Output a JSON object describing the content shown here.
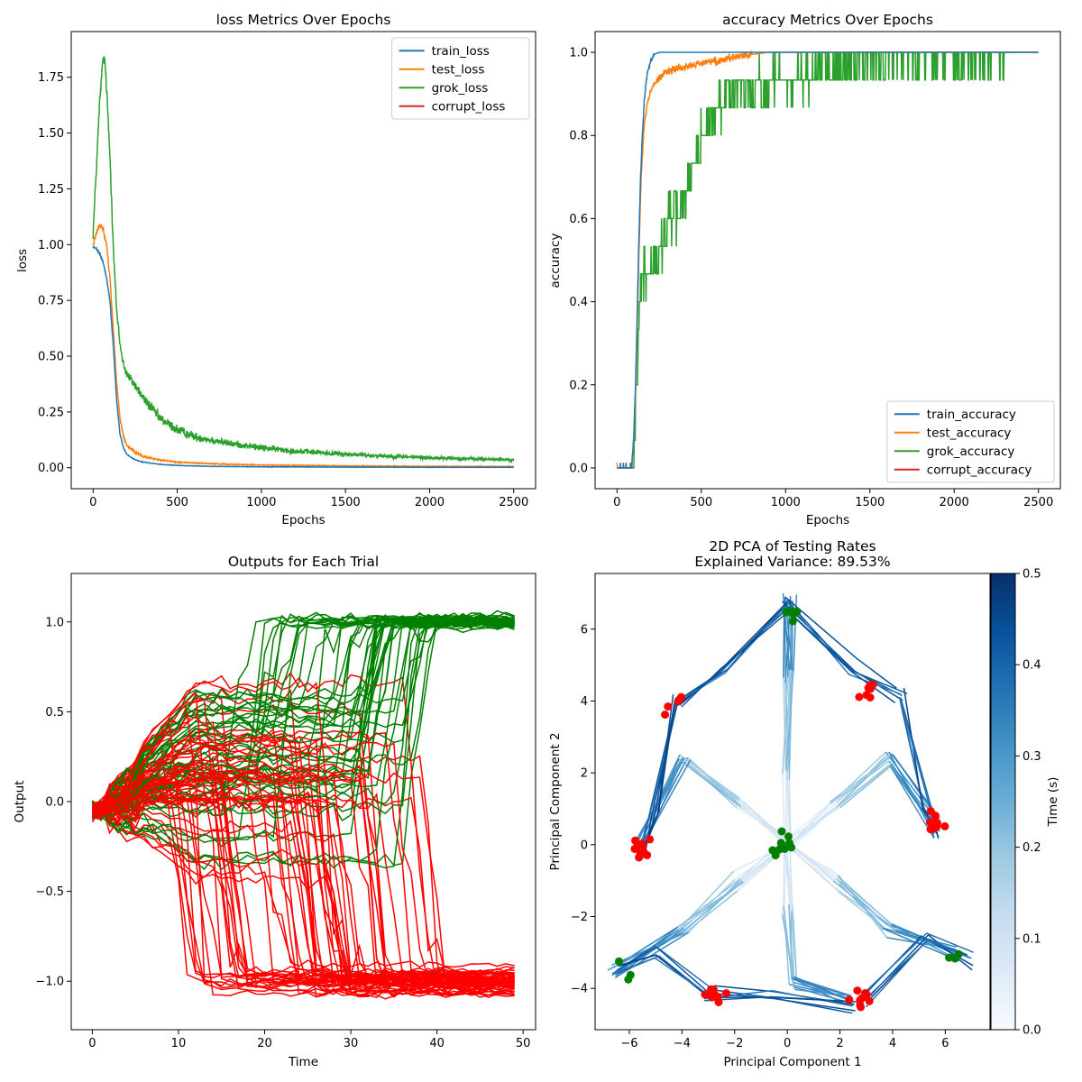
{
  "chart_data": [
    {
      "type": "line",
      "title": "loss Metrics Over Epochs",
      "xlabel": "Epochs",
      "ylabel": "loss",
      "xlim": [
        -130,
        2630
      ],
      "ylim": [
        -0.094,
        1.955
      ],
      "xticks": [
        0,
        500,
        1000,
        1500,
        2000,
        2500
      ],
      "yticks": [
        0.0,
        0.25,
        0.5,
        0.75,
        1.0,
        1.25,
        1.5,
        1.75
      ],
      "ytick_labels": [
        "0.00",
        "0.25",
        "0.50",
        "0.75",
        "1.00",
        "1.25",
        "1.50",
        "1.75"
      ],
      "legend_position": "upper right",
      "series": [
        {
          "name": "train_loss",
          "color": "#1f77b4",
          "x": [
            0,
            20,
            40,
            60,
            80,
            100,
            120,
            140,
            160,
            180,
            200,
            250,
            300,
            400,
            500,
            700,
            1000,
            1500,
            2000,
            2500
          ],
          "y": [
            0.99,
            0.98,
            0.96,
            0.92,
            0.85,
            0.75,
            0.55,
            0.3,
            0.15,
            0.09,
            0.06,
            0.035,
            0.025,
            0.015,
            0.01,
            0.006,
            0.004,
            0.003,
            0.002,
            0.002
          ],
          "noise": 0.006
        },
        {
          "name": "test_loss",
          "color": "#ff7f0e",
          "x": [
            0,
            20,
            40,
            60,
            80,
            100,
            120,
            140,
            160,
            180,
            200,
            250,
            300,
            400,
            500,
            700,
            1000,
            1500,
            2000,
            2500
          ],
          "y": [
            1.0,
            1.05,
            1.09,
            1.07,
            1.0,
            0.85,
            0.62,
            0.38,
            0.22,
            0.14,
            0.1,
            0.07,
            0.05,
            0.035,
            0.025,
            0.018,
            0.012,
            0.008,
            0.006,
            0.005
          ],
          "noise": 0.012
        },
        {
          "name": "grok_loss",
          "color": "#2ca02c",
          "x": [
            0,
            20,
            40,
            60,
            70,
            80,
            100,
            120,
            140,
            160,
            180,
            200,
            250,
            300,
            400,
            500,
            600,
            800,
            1000,
            1200,
            1500,
            2000,
            2500
          ],
          "y": [
            1.05,
            1.35,
            1.65,
            1.84,
            1.82,
            1.7,
            1.4,
            1.0,
            0.7,
            0.55,
            0.47,
            0.42,
            0.37,
            0.31,
            0.22,
            0.17,
            0.14,
            0.11,
            0.09,
            0.075,
            0.06,
            0.045,
            0.035
          ],
          "noise": 0.028
        },
        {
          "name": "corrupt_loss",
          "color": "#d62728",
          "x": [],
          "y": [],
          "noise": 0
        }
      ]
    },
    {
      "type": "line",
      "title": "accuracy Metrics Over Epochs",
      "xlabel": "Epochs",
      "ylabel": "accuracy",
      "xlim": [
        -130,
        2630
      ],
      "ylim": [
        -0.05,
        1.05
      ],
      "xticks": [
        0,
        500,
        1000,
        1500,
        2000,
        2500
      ],
      "yticks": [
        0.0,
        0.2,
        0.4,
        0.6,
        0.8,
        1.0
      ],
      "ytick_labels": [
        "0.0",
        "0.2",
        "0.4",
        "0.6",
        "0.8",
        "1.0"
      ],
      "legend_position": "lower right",
      "series": [
        {
          "name": "train_accuracy",
          "color": "#1f77b4",
          "x": [
            0,
            60,
            90,
            100,
            110,
            120,
            130,
            140,
            150,
            160,
            170,
            180,
            200,
            220,
            250,
            300,
            2500
          ],
          "y": [
            0.0,
            0.0,
            0.02,
            0.08,
            0.2,
            0.38,
            0.55,
            0.7,
            0.8,
            0.87,
            0.92,
            0.95,
            0.98,
            0.995,
            1.0,
            1.0,
            1.0
          ]
        },
        {
          "name": "test_accuracy",
          "color": "#ff7f0e",
          "x": [
            0,
            60,
            90,
            100,
            110,
            120,
            130,
            140,
            150,
            160,
            180,
            200,
            250,
            300,
            400,
            500,
            600,
            700,
            800,
            900,
            1000,
            2500
          ],
          "y": [
            0.0,
            0.0,
            0.02,
            0.07,
            0.18,
            0.34,
            0.52,
            0.66,
            0.75,
            0.82,
            0.88,
            0.91,
            0.94,
            0.955,
            0.965,
            0.975,
            0.98,
            0.99,
            0.995,
            1.0,
            1.0,
            1.0
          ]
        },
        {
          "name": "grok_accuracy",
          "color": "#2ca02c",
          "levels": [
            0.0,
            0.0667,
            0.1333,
            0.2,
            0.2667,
            0.3333,
            0.4,
            0.4667,
            0.5333,
            0.6,
            0.6667,
            0.7333,
            0.8,
            0.8667,
            0.9333,
            1.0
          ],
          "x": [
            0,
            100,
            110,
            120,
            130,
            150,
            200,
            250,
            300,
            400,
            450,
            500,
            550,
            600,
            700,
            800,
            1000,
            1200,
            1500,
            1800,
            2000,
            2300,
            2500
          ],
          "y": [
            0.0,
            0.0,
            0.13,
            0.27,
            0.4,
            0.45,
            0.47,
            0.53,
            0.6,
            0.67,
            0.72,
            0.8,
            0.82,
            0.87,
            0.9,
            0.91,
            0.93,
            0.96,
            0.975,
            0.985,
            0.99,
            1.0,
            1.0
          ]
        },
        {
          "name": "corrupt_accuracy",
          "color": "#d62728",
          "x": [],
          "y": []
        }
      ]
    },
    {
      "type": "line",
      "title": "Outputs for Each Trial",
      "xlabel": "Time",
      "ylabel": "Output",
      "xlim": [
        -2.45,
        51.45
      ],
      "ylim": [
        -1.27,
        1.27
      ],
      "xticks": [
        0,
        10,
        20,
        30,
        40,
        50
      ],
      "yticks": [
        -1.0,
        -0.5,
        0.0,
        0.5,
        1.0
      ],
      "ytick_labels": [
        "−1.0",
        "−0.5",
        "0.0",
        "0.5",
        "1.0"
      ],
      "time_steps": 50,
      "series": [
        {
          "name": "green trials",
          "color": "#008000",
          "count": 45,
          "final_value": 1.0,
          "switch_time_range": [
            14,
            38
          ]
        },
        {
          "name": "red trials",
          "color": "#ff0000",
          "count": 60,
          "final_value": -1.0,
          "switch_time_range": [
            8,
            40
          ]
        }
      ]
    },
    {
      "type": "line",
      "title": "2D PCA of Testing Rates",
      "subtitle": "Explained Variance: 89.53%",
      "xlabel": "Principal Component 1",
      "ylabel": "Principal Component 2",
      "xlim": [
        -7.3,
        7.7
      ],
      "ylim": [
        -5.15,
        7.55
      ],
      "xticks": [
        -6,
        -4,
        -2,
        0,
        2,
        4,
        6
      ],
      "yticks": [
        -4,
        -2,
        0,
        2,
        4,
        6
      ],
      "colorbar": {
        "label": "Time (s)",
        "min": 0.0,
        "max": 0.5,
        "ticks": [
          0.0,
          0.1,
          0.2,
          0.3,
          0.4,
          0.5
        ],
        "colormap": "Blues"
      },
      "arms": [
        {
          "waypoints": [
            [
              0,
              0
            ],
            [
              0,
              2.0
            ],
            [
              0,
              4.8
            ],
            [
              0,
              6.9
            ]
          ],
          "end_marker_color": "#008000"
        },
        {
          "waypoints": [
            [
              0,
              0
            ],
            [
              1.8,
              1.1
            ],
            [
              3.9,
              2.4
            ],
            [
              5.6,
              0.5
            ]
          ],
          "end_marker_color": "#ff0000"
        },
        {
          "waypoints": [
            [
              0,
              0
            ],
            [
              1.8,
              -1.0
            ],
            [
              3.9,
              -2.4
            ],
            [
              6.6,
              -3.1
            ]
          ],
          "end_marker_color": "#008000"
        },
        {
          "waypoints": [
            [
              0,
              0
            ],
            [
              0,
              -1.8
            ],
            [
              0.2,
              -3.8
            ],
            [
              2.4,
              -4.3
            ]
          ],
          "end_marker_color": "#ff0000"
        },
        {
          "waypoints": [
            [
              0,
              0
            ],
            [
              -1.8,
              -1.0
            ],
            [
              -3.9,
              -2.4
            ],
            [
              -6.6,
              -3.5
            ]
          ],
          "end_marker_color": "#008000"
        },
        {
          "waypoints": [
            [
              0,
              0
            ],
            [
              -1.8,
              1.1
            ],
            [
              -3.9,
              2.4
            ],
            [
              -5.6,
              0.0
            ]
          ],
          "end_marker_color": "#ff0000"
        }
      ],
      "outer_arcs": [
        [
          [
            0,
            6.7
          ],
          [
            -2.5,
            4.8
          ],
          [
            -4.1,
            4.0
          ]
        ],
        [
          [
            0,
            6.7
          ],
          [
            2.5,
            4.9
          ],
          [
            4.3,
            4.1
          ]
        ],
        [
          [
            4.3,
            4.1
          ],
          [
            5.3,
            1.0
          ],
          [
            5.7,
            0.3
          ]
        ],
        [
          [
            -4.1,
            4.0
          ],
          [
            -5.0,
            1.0
          ],
          [
            -5.5,
            -0.2
          ]
        ],
        [
          [
            6.9,
            -3.2
          ],
          [
            5.3,
            -2.6
          ],
          [
            3.0,
            -4.3
          ]
        ],
        [
          [
            -6.5,
            -3.5
          ],
          [
            -5.0,
            -3.0
          ],
          [
            -3.0,
            -4.1
          ]
        ],
        [
          [
            -3.0,
            -4.1
          ],
          [
            -0.5,
            -4.2
          ],
          [
            2.5,
            -4.5
          ]
        ]
      ],
      "marker_clusters": [
        {
          "center": [
            0.1,
            6.4
          ],
          "color": "#008000",
          "count": 6
        },
        {
          "center": [
            3.1,
            4.2
          ],
          "color": "#ff0000",
          "count": 8
        },
        {
          "center": [
            -4.3,
            3.9
          ],
          "color": "#ff0000",
          "count": 6
        },
        {
          "center": [
            5.6,
            0.5
          ],
          "color": "#ff0000",
          "count": 10
        },
        {
          "center": [
            -5.5,
            -0.1
          ],
          "color": "#ff0000",
          "count": 10
        },
        {
          "center": [
            -0.2,
            0.1
          ],
          "color": "#008000",
          "count": 10
        },
        {
          "center": [
            6.5,
            -3.1
          ],
          "color": "#008000",
          "count": 3
        },
        {
          "center": [
            -6.2,
            -3.4
          ],
          "color": "#008000",
          "count": 3
        },
        {
          "center": [
            -2.7,
            -4.1
          ],
          "color": "#ff0000",
          "count": 10
        },
        {
          "center": [
            2.8,
            -4.4
          ],
          "color": "#ff0000",
          "count": 10
        }
      ]
    }
  ]
}
